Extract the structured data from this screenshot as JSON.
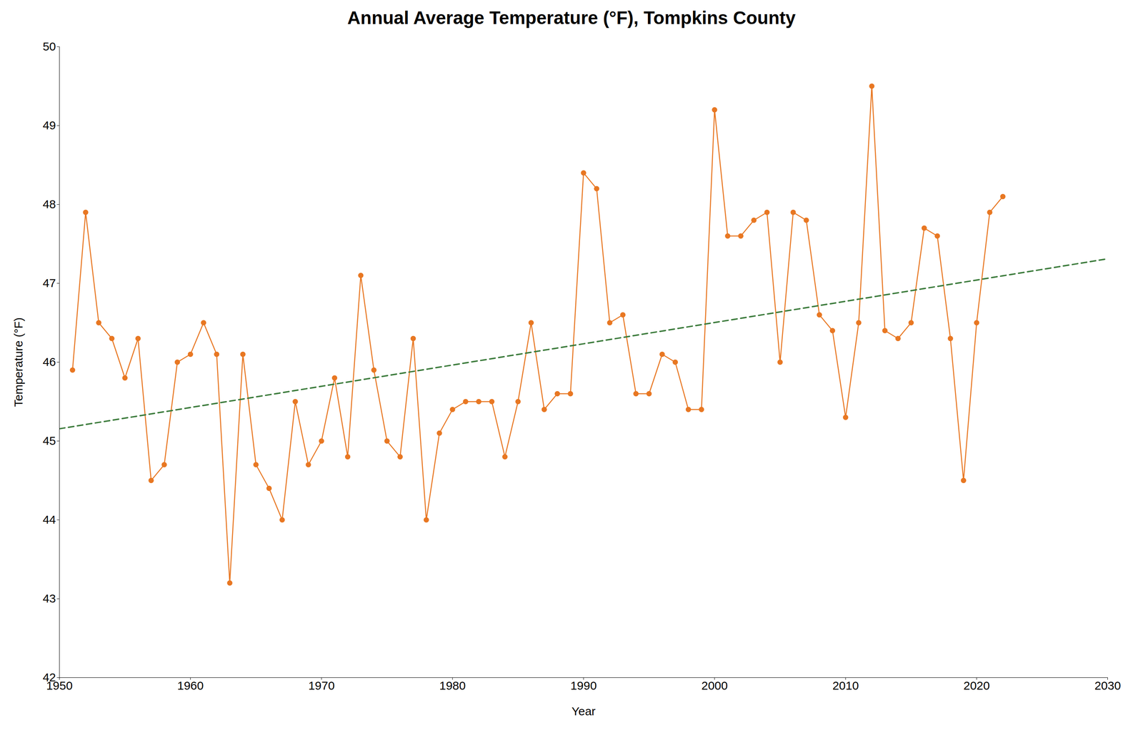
{
  "chart_data": {
    "type": "line",
    "title": "Annual Average Temperature (°F), Tompkins County",
    "xlabel": "Year",
    "ylabel": "Temperature (°F)",
    "xlim": [
      1950,
      2030
    ],
    "ylim": [
      42,
      50
    ],
    "xticks": [
      1950,
      1960,
      1970,
      1980,
      1990,
      2000,
      2010,
      2020,
      2030
    ],
    "yticks": [
      42,
      43,
      44,
      45,
      46,
      47,
      48,
      49,
      50
    ],
    "grid": false,
    "series": [
      {
        "type": "line",
        "color": "#e87722",
        "marker": "circle",
        "line_style": "solid",
        "x": [
          1951,
          1952,
          1953,
          1954,
          1955,
          1956,
          1957,
          1958,
          1959,
          1960,
          1961,
          1962,
          1963,
          1964,
          1965,
          1966,
          1967,
          1968,
          1969,
          1970,
          1971,
          1972,
          1973,
          1974,
          1975,
          1976,
          1977,
          1978,
          1979,
          1980,
          1981,
          1982,
          1983,
          1984,
          1985,
          1986,
          1987,
          1988,
          1989,
          1990,
          1991,
          1992,
          1993,
          1994,
          1995,
          1996,
          1997,
          1998,
          1999,
          2000,
          2001,
          2002,
          2003,
          2004,
          2005,
          2006,
          2007,
          2008,
          2009,
          2010,
          2011,
          2012,
          2013,
          2014,
          2015,
          2016,
          2017,
          2018,
          2019,
          2020,
          2021,
          2022
        ],
        "values": [
          45.9,
          47.9,
          46.5,
          46.3,
          45.8,
          46.3,
          44.5,
          44.7,
          46.0,
          46.1,
          46.5,
          46.1,
          43.2,
          46.1,
          44.7,
          44.4,
          44.0,
          45.5,
          44.7,
          45.0,
          45.8,
          44.8,
          47.1,
          45.9,
          45.0,
          44.8,
          46.3,
          44.0,
          45.1,
          45.4,
          45.5,
          45.5,
          45.5,
          44.8,
          45.5,
          46.5,
          45.4,
          45.6,
          45.6,
          48.4,
          48.2,
          46.5,
          46.6,
          45.6,
          45.6,
          46.1,
          46.0,
          45.4,
          45.4,
          49.2,
          47.6,
          47.6,
          47.8,
          47.9,
          46.0,
          47.9,
          47.8,
          46.6,
          46.4,
          45.3,
          46.5,
          49.5,
          46.4,
          46.3,
          46.5,
          47.7,
          47.6,
          46.3,
          44.5,
          46.5,
          47.9,
          48.1
        ]
      },
      {
        "type": "line",
        "color": "#3a7a3a",
        "line_style": "dashed",
        "x": [
          1950,
          2030
        ],
        "values": [
          45.1556,
          47.3108
        ]
      }
    ]
  }
}
